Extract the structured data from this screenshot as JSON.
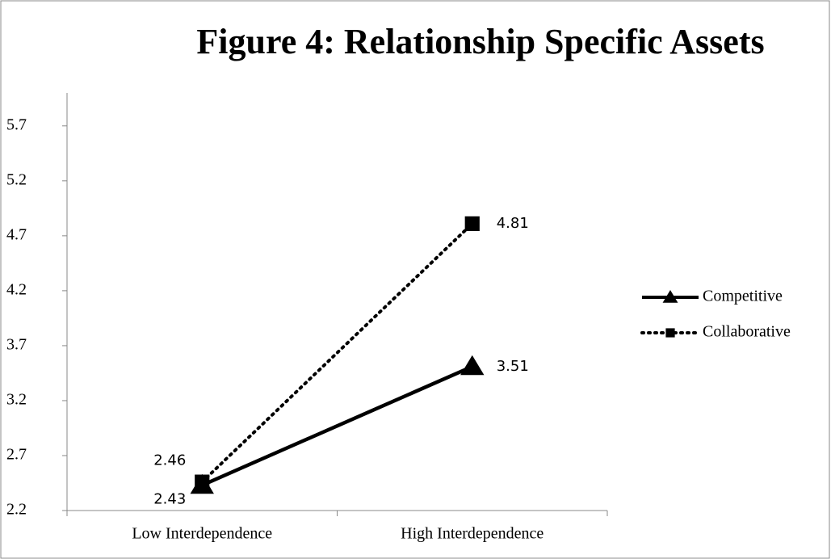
{
  "chart_data": {
    "type": "line",
    "title": "Figure 4: Relationship Specific Assets",
    "categories": [
      "Low Interdependence",
      "High Interdependence"
    ],
    "series": [
      {
        "name": "Competitive",
        "color": "#000000",
        "marker": "triangle",
        "line_style": "solid",
        "values": [
          2.43,
          3.51
        ]
      },
      {
        "name": "Collaborative",
        "color": "#000000",
        "marker": "square",
        "line_style": "dotted",
        "values": [
          2.46,
          4.81
        ]
      }
    ],
    "ylim": [
      2.2,
      6.0
    ],
    "yticks": [
      2.2,
      2.7,
      3.2,
      3.7,
      4.2,
      4.7,
      5.2,
      5.7
    ],
    "grid": false,
    "legend": "right"
  }
}
